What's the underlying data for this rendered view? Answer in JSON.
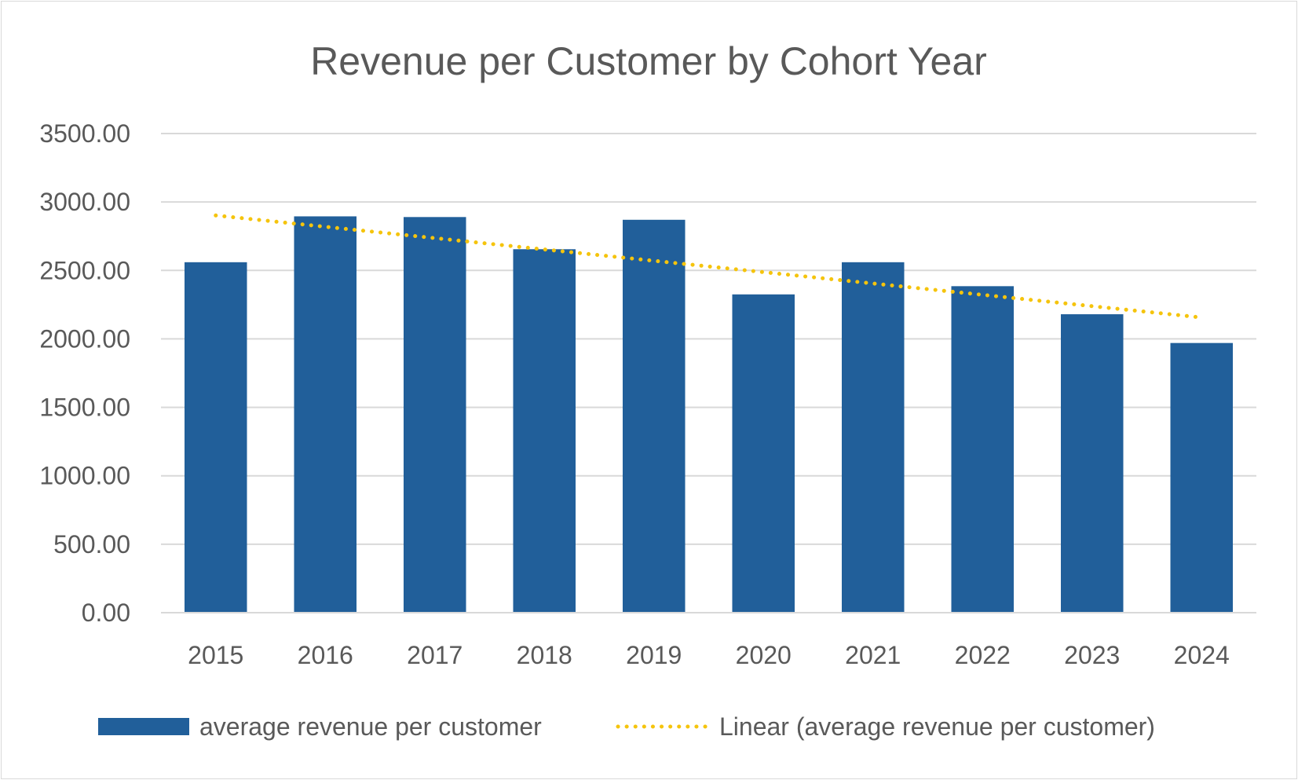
{
  "chart_data": {
    "type": "bar",
    "title": "Revenue per Customer by Cohort Year",
    "xlabel": "",
    "ylabel": "",
    "categories": [
      "2015",
      "2016",
      "2017",
      "2018",
      "2019",
      "2020",
      "2021",
      "2022",
      "2023",
      "2024"
    ],
    "series": [
      {
        "name": "average revenue per customer",
        "values": [
          2560,
          2895,
          2890,
          2655,
          2870,
          2325,
          2560,
          2385,
          2180,
          1970
        ],
        "color": "#215f9a"
      }
    ],
    "trendline": {
      "type": "linear",
      "name": "Linear (average revenue per customer)",
      "of_series": "average revenue per customer",
      "color": "#f5c40d",
      "style": "dotted"
    },
    "ylim": [
      0,
      3500
    ],
    "yticks": [
      "0.00",
      "500.00",
      "1000.00",
      "1500.00",
      "2000.00",
      "2500.00",
      "3000.00",
      "3500.00"
    ],
    "grid": true,
    "legend_position": "bottom"
  }
}
